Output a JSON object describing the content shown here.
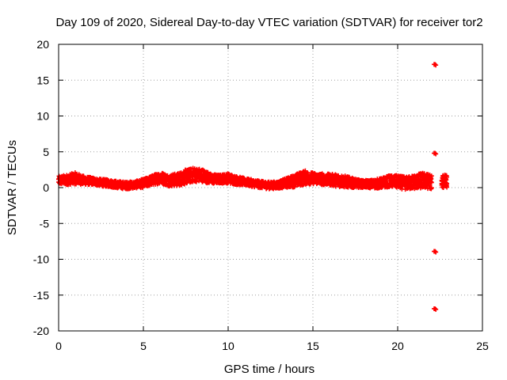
{
  "chart_data": {
    "type": "scatter",
    "title": "Day 109 of 2020, Sidereal Day-to-day VTEC variation (SDTVAR) for receiver tor2",
    "xlabel": "GPS time / hours",
    "ylabel": "SDTVAR / TECUs",
    "xlim": [
      0,
      25
    ],
    "ylim": [
      -20,
      20
    ],
    "xticks": [
      0,
      5,
      10,
      15,
      20,
      25
    ],
    "yticks": [
      -20,
      -15,
      -10,
      -5,
      0,
      5,
      10,
      15,
      20
    ],
    "grid": true,
    "series": [
      {
        "name": "SDTVAR",
        "color": "#ff0000",
        "marker": "plus",
        "band_x": [
          0,
          0.5,
          1.0,
          1.5,
          2.0,
          2.5,
          3.0,
          3.5,
          4.0,
          4.5,
          5.0,
          5.5,
          6.0,
          6.5,
          7.0,
          7.5,
          8.0,
          8.5,
          9.0,
          9.5,
          10.0,
          10.5,
          11.0,
          11.5,
          12.0,
          12.5,
          13.0,
          13.5,
          14.0,
          14.5,
          15.0,
          15.5,
          16.0,
          16.5,
          17.0,
          17.5,
          18.0,
          18.5,
          19.0,
          19.5,
          20.0,
          20.5,
          21.0,
          21.5,
          22.0
        ],
        "band_center": [
          1.0,
          1.1,
          1.3,
          1.0,
          0.9,
          0.7,
          0.6,
          0.4,
          0.3,
          0.4,
          0.6,
          1.0,
          1.4,
          1.0,
          1.1,
          1.5,
          1.8,
          1.7,
          1.2,
          1.2,
          1.3,
          1.0,
          0.8,
          0.6,
          0.4,
          0.3,
          0.4,
          0.7,
          1.0,
          1.4,
          1.3,
          1.2,
          1.1,
          1.0,
          0.8,
          0.6,
          0.5,
          0.5,
          0.6,
          0.9,
          0.8,
          0.6,
          0.8,
          1.0,
          0.8
        ],
        "band_spread": [
          0.6,
          0.7,
          0.8,
          0.6,
          0.5,
          0.5,
          0.5,
          0.5,
          0.5,
          0.5,
          0.6,
          0.7,
          0.8,
          0.8,
          0.9,
          1.0,
          1.0,
          0.9,
          0.7,
          0.6,
          0.7,
          0.6,
          0.5,
          0.5,
          0.5,
          0.5,
          0.5,
          0.7,
          0.9,
          1.0,
          0.8,
          0.8,
          0.8,
          0.9,
          0.8,
          0.6,
          0.5,
          0.6,
          0.7,
          0.8,
          0.9,
          0.9,
          1.0,
          1.1,
          1.0
        ],
        "trailing_segment": {
          "x": [
            22.6,
            22.7,
            22.8,
            22.9
          ],
          "center": [
            0.6,
            0.9,
            1.3,
            0.8
          ],
          "spread": [
            0.6,
            1.0,
            1.0,
            0.8
          ]
        },
        "outliers": [
          {
            "x": 22.2,
            "y": 17.2
          },
          {
            "x": 22.2,
            "y": 4.8
          },
          {
            "x": 22.2,
            "y": -8.9
          },
          {
            "x": 22.2,
            "y": -16.9
          }
        ]
      }
    ]
  }
}
